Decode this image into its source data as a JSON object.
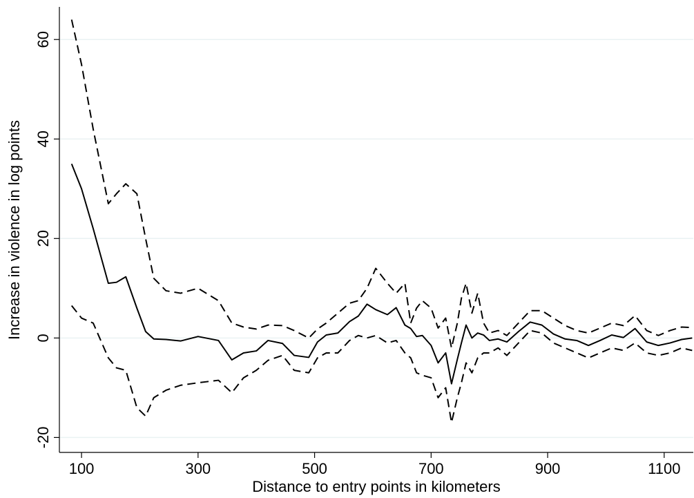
{
  "chart_data": {
    "type": "line",
    "x_label": "Distance to entry points in kilometers",
    "y_label": "Increase in violence in log points",
    "x": [
      83,
      100,
      120,
      146,
      160,
      176,
      195,
      210,
      224,
      245,
      270,
      300,
      335,
      358,
      378,
      400,
      420,
      445,
      465,
      490,
      505,
      520,
      540,
      560,
      575,
      590,
      605,
      625,
      640,
      655,
      665,
      675,
      685,
      700,
      712,
      725,
      735,
      745,
      752,
      760,
      770,
      780,
      790,
      800,
      815,
      830,
      850,
      870,
      890,
      910,
      930,
      950,
      970,
      990,
      1010,
      1030,
      1050,
      1070,
      1090,
      1110,
      1130,
      1148
    ],
    "series": [
      {
        "color": "#000000",
        "style": "solid",
        "values": [
          35,
          30,
          22,
          11,
          11.2,
          12.3,
          6,
          1.3,
          -0.2,
          -0.3,
          -0.6,
          0.3,
          -0.5,
          -4.4,
          -3,
          -2.6,
          -0.5,
          -1.1,
          -3.5,
          -3.9,
          -0.8,
          0.6,
          1,
          3.3,
          4.4,
          6.8,
          5.7,
          4.7,
          6.1,
          2.6,
          1.9,
          0.3,
          0.5,
          -1.5,
          -5,
          -3,
          -9.2,
          -4.3,
          -1,
          2.6,
          0,
          1,
          0.6,
          -0.5,
          -0.2,
          -0.8,
          1.3,
          3.2,
          2.6,
          0.8,
          -0.2,
          -0.5,
          -1.5,
          -0.5,
          0.6,
          0.1,
          1.9,
          -0.8,
          -1.5,
          -1,
          -0.3,
          0
        ]
      },
      {
        "color": "#000000",
        "style": "dashed",
        "values": [
          64,
          55,
          42,
          27,
          29,
          31,
          29,
          20,
          12,
          9.5,
          9,
          10,
          7.5,
          3,
          2.2,
          1.8,
          2.6,
          2.5,
          1.5,
          0,
          1.8,
          3,
          5,
          7,
          7.5,
          10,
          14,
          11,
          9,
          11,
          3,
          6,
          7.5,
          6,
          2,
          4,
          -2,
          3,
          8,
          11,
          5,
          9,
          3,
          1,
          1.5,
          0.5,
          3,
          5.5,
          5.5,
          4,
          2.5,
          1.5,
          1,
          2,
          3,
          2.5,
          4.5,
          1.5,
          0.5,
          1.5,
          2.2,
          2.1
        ]
      },
      {
        "color": "#000000",
        "style": "dashed",
        "values": [
          6.5,
          4,
          3,
          -4,
          -6,
          -6.5,
          -14,
          -15.7,
          -12,
          -10.5,
          -9.5,
          -9,
          -8.5,
          -11,
          -8,
          -6.5,
          -4.5,
          -3.5,
          -6.5,
          -7,
          -4,
          -3,
          -3,
          -0.5,
          0.5,
          0,
          0.5,
          -1,
          -0.5,
          -3,
          -4,
          -7,
          -7.5,
          -8,
          -12,
          -10,
          -17,
          -12,
          -9,
          -5,
          -7,
          -4,
          -3,
          -3,
          -2,
          -3.5,
          -1,
          1.5,
          1,
          -1,
          -2,
          -3,
          -4,
          -3,
          -2,
          -2.5,
          -1,
          -3,
          -3.5,
          -3,
          -2,
          -2.5
        ]
      }
    ],
    "xlim": [
      62,
      1150
    ],
    "xticks": [
      100,
      300,
      500,
      700,
      900,
      1100
    ],
    "ylim": [
      -23,
      66
    ],
    "yticks": [
      -20,
      0,
      20,
      40,
      60
    ],
    "grid": true,
    "grid_color": "#eaf2f3"
  }
}
